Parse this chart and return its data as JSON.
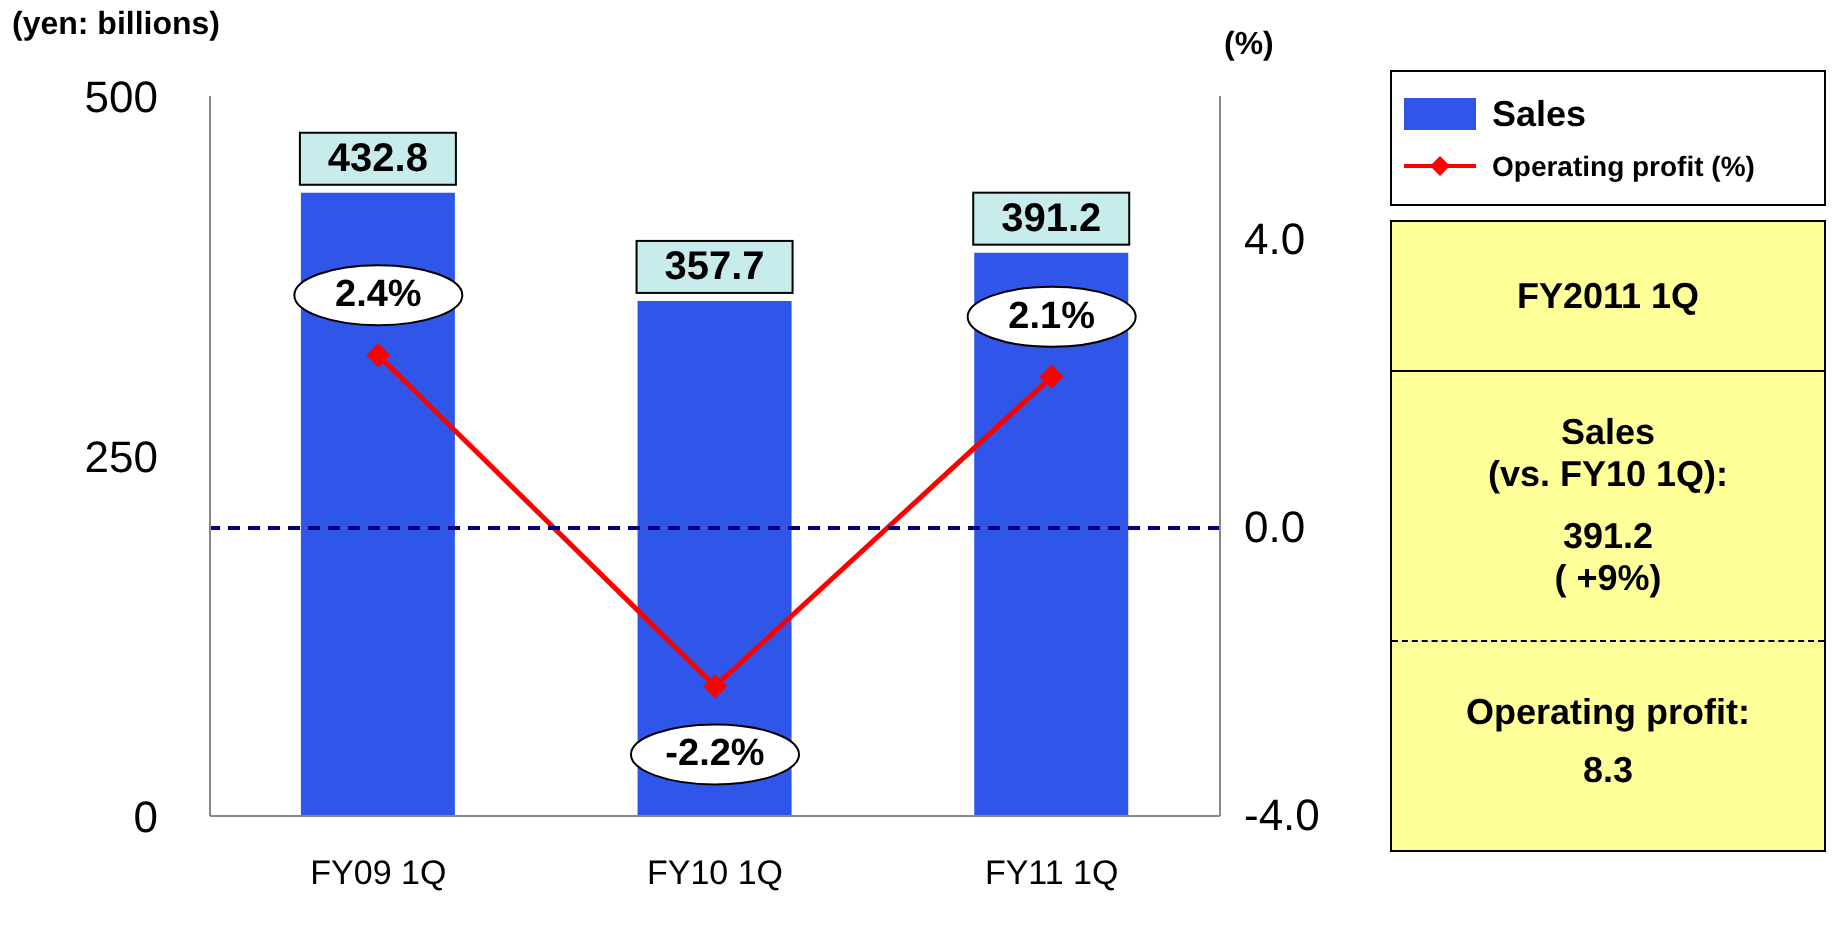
{
  "chart_data": [
    {
      "type": "bar",
      "categories": [
        "FY09 1Q",
        "FY10 1Q",
        "FY11 1Q"
      ],
      "ylabel": "(yen: billions)",
      "y2label": "(%)",
      "ylim": [
        0,
        500
      ],
      "yticks": [
        0,
        250,
        500
      ],
      "y2lim": [
        -4,
        6
      ],
      "y2ticks": [
        {
          "value": -4,
          "label": "-4.0"
        },
        {
          "value": 0,
          "label": "0.0"
        },
        {
          "value": 4,
          "label": "4.0"
        }
      ],
      "legend": "top right",
      "series": [
        {
          "name": "Sales",
          "type": "bar",
          "color": "#2f56e8",
          "values": [
            432.8,
            357.7,
            391.2
          ],
          "value_labels": [
            "432.8",
            "357.7",
            "391.2"
          ]
        },
        {
          "name": "Operating profit (%)",
          "type": "line",
          "axis": "y2",
          "color": "#ff0000",
          "marker": "diamond",
          "values": [
            2.4,
            -2.2,
            2.1
          ],
          "value_labels": [
            "2.4%",
            "-2.2%",
            "2.1%"
          ]
        }
      ],
      "ref_lines": [
        {
          "axis": "y2",
          "value": 0,
          "color": "#000080",
          "line_style": "dashed"
        }
      ]
    },
    {
      "type": "other",
      "title": "FY2011 1Q",
      "annotations": [
        "Sales\n(vs. FY10 1Q):",
        "391.2\n( +9%)",
        "Operating profit:",
        "8.3"
      ]
    }
  ]
}
